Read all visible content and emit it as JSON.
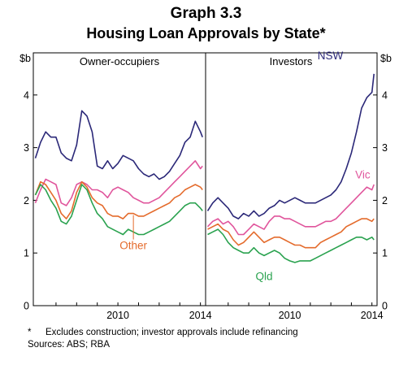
{
  "header": {
    "graph_number": "Graph 3.3",
    "title": "Housing Loan Approvals by State*"
  },
  "footer": {
    "note_marker": "*",
    "note": "Excludes construction; investor approvals include refinancing",
    "sources": "Sources: ABS; RBA"
  },
  "chart_data": {
    "type": "line",
    "unit_label": "$b",
    "ylim": [
      0,
      4.8
    ],
    "yticks": [
      0,
      1,
      2,
      3,
      4
    ],
    "xlim": [
      2005.9,
      2014.25
    ],
    "xticks": [
      2010,
      2014
    ],
    "grid": false,
    "panels": [
      {
        "title": "Owner-occupiers",
        "series": [
          {
            "name": "NSW",
            "color": "#2b2878",
            "x": [
              2006.0,
              2006.25,
              2006.5,
              2006.75,
              2007.0,
              2007.25,
              2007.5,
              2007.75,
              2008.0,
              2008.25,
              2008.5,
              2008.75,
              2009.0,
              2009.25,
              2009.5,
              2009.75,
              2010.0,
              2010.25,
              2010.5,
              2010.75,
              2011.0,
              2011.25,
              2011.5,
              2011.75,
              2012.0,
              2012.25,
              2012.5,
              2012.75,
              2013.0,
              2013.25,
              2013.5,
              2013.75,
              2014.0,
              2014.1
            ],
            "y": [
              2.8,
              3.1,
              3.3,
              3.2,
              3.2,
              2.9,
              2.8,
              2.75,
              3.05,
              3.7,
              3.6,
              3.3,
              2.65,
              2.6,
              2.75,
              2.6,
              2.7,
              2.85,
              2.8,
              2.75,
              2.6,
              2.5,
              2.45,
              2.5,
              2.4,
              2.45,
              2.55,
              2.7,
              2.85,
              3.1,
              3.2,
              3.5,
              3.3,
              3.2
            ]
          },
          {
            "name": "Vic",
            "color": "#e0559c",
            "x": [
              2006.0,
              2006.25,
              2006.5,
              2006.75,
              2007.0,
              2007.25,
              2007.5,
              2007.75,
              2008.0,
              2008.25,
              2008.5,
              2008.75,
              2009.0,
              2009.25,
              2009.5,
              2009.75,
              2010.0,
              2010.25,
              2010.5,
              2010.75,
              2011.0,
              2011.25,
              2011.5,
              2011.75,
              2012.0,
              2012.25,
              2012.5,
              2012.75,
              2013.0,
              2013.25,
              2013.5,
              2013.75,
              2014.0,
              2014.1
            ],
            "y": [
              1.95,
              2.2,
              2.4,
              2.35,
              2.3,
              1.95,
              1.9,
              2.05,
              2.3,
              2.35,
              2.3,
              2.2,
              2.2,
              2.15,
              2.05,
              2.2,
              2.25,
              2.2,
              2.15,
              2.05,
              2.0,
              1.95,
              1.95,
              2.0,
              2.05,
              2.15,
              2.25,
              2.35,
              2.45,
              2.55,
              2.65,
              2.75,
              2.6,
              2.65
            ]
          },
          {
            "name": "Other",
            "color": "#e46b2c",
            "x": [
              2006.0,
              2006.25,
              2006.5,
              2006.75,
              2007.0,
              2007.25,
              2007.5,
              2007.75,
              2008.0,
              2008.25,
              2008.5,
              2008.75,
              2009.0,
              2009.25,
              2009.5,
              2009.75,
              2010.0,
              2010.25,
              2010.5,
              2010.75,
              2011.0,
              2011.25,
              2011.5,
              2011.75,
              2012.0,
              2012.25,
              2012.5,
              2012.75,
              2013.0,
              2013.25,
              2013.5,
              2013.75,
              2014.0,
              2014.1
            ],
            "y": [
              2.1,
              2.35,
              2.3,
              2.15,
              2.0,
              1.75,
              1.65,
              1.8,
              2.15,
              2.35,
              2.25,
              2.05,
              1.95,
              1.9,
              1.75,
              1.7,
              1.7,
              1.65,
              1.75,
              1.75,
              1.7,
              1.7,
              1.75,
              1.8,
              1.85,
              1.9,
              1.95,
              2.05,
              2.1,
              2.2,
              2.25,
              2.3,
              2.25,
              2.2
            ]
          },
          {
            "name": "Qld",
            "color": "#2aa24f",
            "x": [
              2006.0,
              2006.25,
              2006.5,
              2006.75,
              2007.0,
              2007.25,
              2007.5,
              2007.75,
              2008.0,
              2008.25,
              2008.5,
              2008.75,
              2009.0,
              2009.25,
              2009.5,
              2009.75,
              2010.0,
              2010.25,
              2010.5,
              2010.75,
              2011.0,
              2011.25,
              2011.5,
              2011.75,
              2012.0,
              2012.25,
              2012.5,
              2012.75,
              2013.0,
              2013.25,
              2013.5,
              2013.75,
              2014.0,
              2014.1
            ],
            "y": [
              2.1,
              2.3,
              2.2,
              2.0,
              1.85,
              1.6,
              1.55,
              1.7,
              2.0,
              2.3,
              2.2,
              1.95,
              1.75,
              1.65,
              1.5,
              1.45,
              1.4,
              1.35,
              1.45,
              1.4,
              1.35,
              1.35,
              1.4,
              1.45,
              1.5,
              1.55,
              1.6,
              1.7,
              1.8,
              1.9,
              1.95,
              1.95,
              1.85,
              1.8
            ]
          }
        ]
      },
      {
        "title": "Investors",
        "series": [
          {
            "name": "NSW",
            "color": "#2b2878",
            "x": [
              2006.0,
              2006.25,
              2006.5,
              2006.75,
              2007.0,
              2007.25,
              2007.5,
              2007.75,
              2008.0,
              2008.25,
              2008.5,
              2008.75,
              2009.0,
              2009.25,
              2009.5,
              2009.75,
              2010.0,
              2010.25,
              2010.5,
              2010.75,
              2011.0,
              2011.25,
              2011.5,
              2011.75,
              2012.0,
              2012.25,
              2012.5,
              2012.75,
              2013.0,
              2013.25,
              2013.5,
              2013.75,
              2014.0,
              2014.1
            ],
            "y": [
              1.8,
              1.95,
              2.05,
              1.95,
              1.85,
              1.7,
              1.65,
              1.75,
              1.7,
              1.8,
              1.7,
              1.75,
              1.85,
              1.9,
              2.0,
              1.95,
              2.0,
              2.05,
              2.0,
              1.95,
              1.95,
              1.95,
              2.0,
              2.05,
              2.1,
              2.2,
              2.35,
              2.6,
              2.9,
              3.3,
              3.75,
              3.95,
              4.05,
              4.4
            ]
          },
          {
            "name": "Vic",
            "color": "#e0559c",
            "x": [
              2006.0,
              2006.25,
              2006.5,
              2006.75,
              2007.0,
              2007.25,
              2007.5,
              2007.75,
              2008.0,
              2008.25,
              2008.5,
              2008.75,
              2009.0,
              2009.25,
              2009.5,
              2009.75,
              2010.0,
              2010.25,
              2010.5,
              2010.75,
              2011.0,
              2011.25,
              2011.5,
              2011.75,
              2012.0,
              2012.25,
              2012.5,
              2012.75,
              2013.0,
              2013.25,
              2013.5,
              2013.75,
              2014.0,
              2014.1
            ],
            "y": [
              1.5,
              1.6,
              1.65,
              1.55,
              1.6,
              1.5,
              1.35,
              1.35,
              1.45,
              1.55,
              1.5,
              1.45,
              1.6,
              1.7,
              1.7,
              1.65,
              1.65,
              1.6,
              1.55,
              1.5,
              1.5,
              1.5,
              1.55,
              1.6,
              1.6,
              1.65,
              1.75,
              1.85,
              1.95,
              2.05,
              2.15,
              2.25,
              2.2,
              2.3
            ]
          },
          {
            "name": "Other",
            "color": "#e46b2c",
            "x": [
              2006.0,
              2006.25,
              2006.5,
              2006.75,
              2007.0,
              2007.25,
              2007.5,
              2007.75,
              2008.0,
              2008.25,
              2008.5,
              2008.75,
              2009.0,
              2009.25,
              2009.5,
              2009.75,
              2010.0,
              2010.25,
              2010.5,
              2010.75,
              2011.0,
              2011.25,
              2011.5,
              2011.75,
              2012.0,
              2012.25,
              2012.5,
              2012.75,
              2013.0,
              2013.25,
              2013.5,
              2013.75,
              2014.0,
              2014.1
            ],
            "y": [
              1.45,
              1.5,
              1.55,
              1.45,
              1.4,
              1.25,
              1.15,
              1.2,
              1.3,
              1.4,
              1.3,
              1.2,
              1.25,
              1.3,
              1.3,
              1.25,
              1.2,
              1.15,
              1.15,
              1.1,
              1.1,
              1.1,
              1.2,
              1.25,
              1.3,
              1.35,
              1.4,
              1.5,
              1.55,
              1.6,
              1.65,
              1.65,
              1.6,
              1.65
            ]
          },
          {
            "name": "Qld",
            "color": "#2aa24f",
            "x": [
              2006.0,
              2006.25,
              2006.5,
              2006.75,
              2007.0,
              2007.25,
              2007.5,
              2007.75,
              2008.0,
              2008.25,
              2008.5,
              2008.75,
              2009.0,
              2009.25,
              2009.5,
              2009.75,
              2010.0,
              2010.25,
              2010.5,
              2010.75,
              2011.0,
              2011.25,
              2011.5,
              2011.75,
              2012.0,
              2012.25,
              2012.5,
              2012.75,
              2013.0,
              2013.25,
              2013.5,
              2013.75,
              2014.0,
              2014.1
            ],
            "y": [
              1.35,
              1.4,
              1.45,
              1.35,
              1.2,
              1.1,
              1.05,
              1.0,
              1.0,
              1.1,
              1.0,
              0.95,
              1.0,
              1.05,
              1.0,
              0.9,
              0.85,
              0.82,
              0.85,
              0.85,
              0.85,
              0.9,
              0.95,
              1.0,
              1.05,
              1.1,
              1.15,
              1.2,
              1.25,
              1.3,
              1.3,
              1.25,
              1.3,
              1.25
            ]
          }
        ]
      }
    ],
    "series_labels": [
      {
        "panel": 1,
        "series": "NSW",
        "text": "NSW"
      },
      {
        "panel": 1,
        "series": "Vic",
        "text": "Vic"
      },
      {
        "panel": 0,
        "series": "Other",
        "text": "Other"
      },
      {
        "panel": 1,
        "series": "Qld",
        "text": "Qld"
      }
    ]
  }
}
